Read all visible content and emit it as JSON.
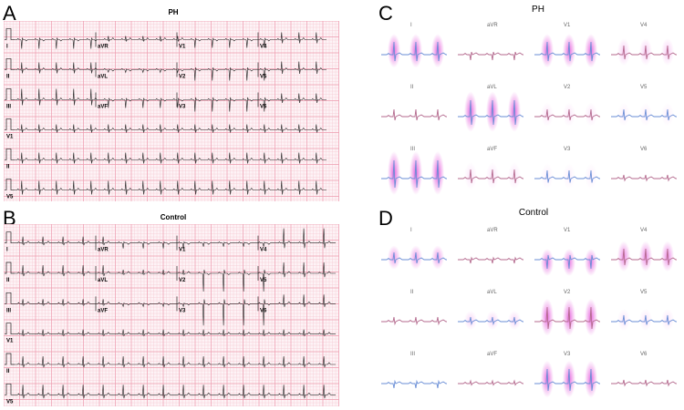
{
  "panels": {
    "A": {
      "letter": "A",
      "title": "PH"
    },
    "B": {
      "letter": "B",
      "title": "Control"
    },
    "C": {
      "letter": "C",
      "title": "PH"
    },
    "D": {
      "letter": "D",
      "title": "Control"
    }
  },
  "grid_leads": {
    "rows": [
      [
        "I",
        "aVR",
        "V1",
        "V4"
      ],
      [
        "II",
        "aVL",
        "V2",
        "V5"
      ],
      [
        "III",
        "aVF",
        "V3",
        "V6"
      ],
      [
        "V1",
        "",
        "",
        ""
      ],
      [
        "II",
        "",
        "",
        ""
      ],
      [
        "V5",
        "",
        "",
        ""
      ]
    ]
  },
  "vector_leads": {
    "rows": [
      [
        "I",
        "aVR",
        "V1",
        "V4"
      ],
      [
        "II",
        "aVL",
        "V2",
        "V5"
      ],
      [
        "III",
        "aVF",
        "V3",
        "V6"
      ]
    ]
  },
  "colors": {
    "grid_minor": "#f6c9d3",
    "grid_major": "#ee9fb2",
    "grid_bg": "#fdf3f6",
    "trace": "#222222",
    "trace_blue": "#6a8ed6",
    "trace_pink": "#b46a8e",
    "glow": "#e24bd8"
  }
}
